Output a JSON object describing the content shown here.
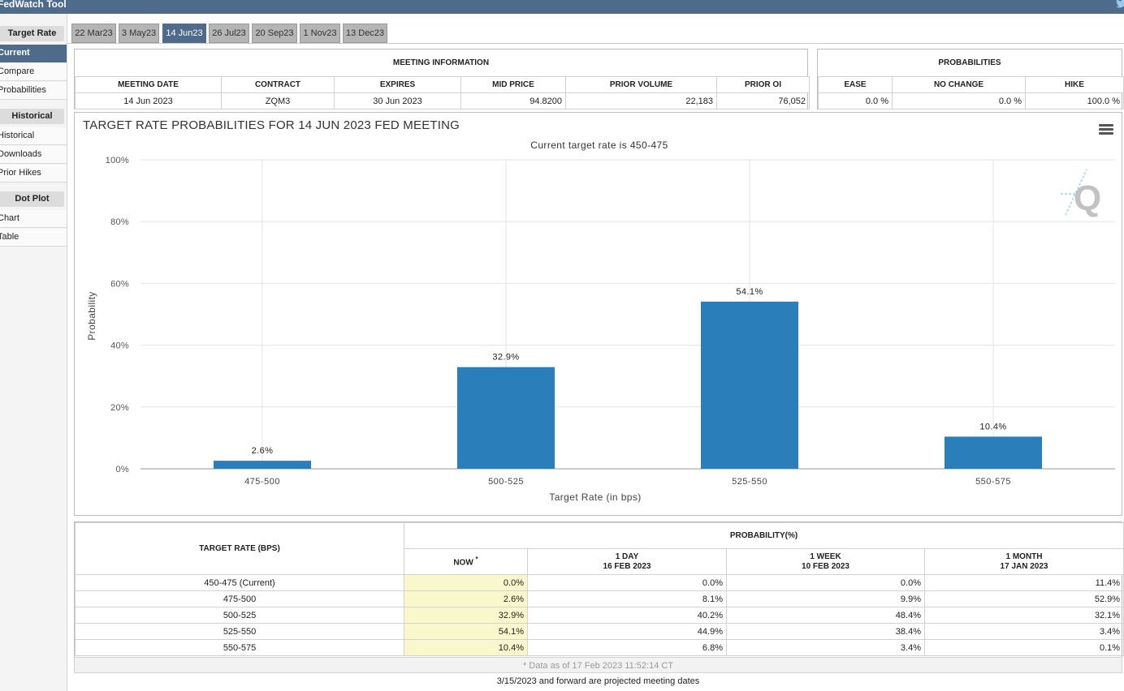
{
  "app": {
    "title": "FedWatch Tool"
  },
  "colors": {
    "accent": "#4e6b8c",
    "bar": "#2a7fba",
    "highlight": "#f8f8cc"
  },
  "sidebar": {
    "sections": [
      {
        "header": "Target Rate",
        "items": [
          "Current",
          "Compare",
          "Probabilities"
        ]
      },
      {
        "header": "Historical",
        "items": [
          "Historical",
          "Downloads",
          "Prior Hikes"
        ]
      },
      {
        "header": "Dot Plot",
        "items": [
          "Chart",
          "Table"
        ]
      }
    ]
  },
  "tabs": [
    "22 Mar23",
    "3 May23",
    "14 Jun23",
    "26 Jul23",
    "20 Sep23",
    "1 Nov23",
    "13 Dec23"
  ],
  "meeting_info": {
    "title": "MEETING INFORMATION",
    "headers": [
      "MEETING DATE",
      "CONTRACT",
      "EXPIRES",
      "MID PRICE",
      "PRIOR VOLUME",
      "PRIOR OI"
    ],
    "values": [
      "14 Jun 2023",
      "ZQM3",
      "30 Jun 2023",
      "94.8200",
      "22,183",
      "76,052"
    ]
  },
  "probabilities": {
    "title": "PROBABILITIES",
    "headers": [
      "EASE",
      "NO CHANGE",
      "HIKE"
    ],
    "values": [
      "0.0 %",
      "0.0 %",
      "100.0 %"
    ]
  },
  "chart_data": {
    "type": "bar",
    "title": "TARGET RATE PROBABILITIES FOR 14 JUN 2023 FED MEETING",
    "subtitle": "Current target rate is 450-475",
    "categories": [
      "475-500",
      "500-525",
      "525-550",
      "550-575"
    ],
    "values": [
      2.6,
      32.9,
      54.1,
      10.4
    ],
    "data_labels": [
      "2.6%",
      "32.9%",
      "54.1%",
      "10.4%"
    ],
    "xlabel": "Target Rate (in bps)",
    "ylabel": "Probability",
    "ylim": [
      0,
      100
    ],
    "yticks": [
      0,
      20,
      40,
      60,
      80,
      100
    ],
    "ytick_labels": [
      "0%",
      "20%",
      "40%",
      "60%",
      "80%",
      "100%"
    ],
    "grid": true,
    "watermark": "Q"
  },
  "prob_table": {
    "left_header": "TARGET RATE (BPS)",
    "group_header": "PROBABILITY(%)",
    "columns": [
      {
        "line1": "NOW",
        "line2": "",
        "marker": "*"
      },
      {
        "line1": "1 DAY",
        "line2": "16 FEB 2023",
        "marker": ""
      },
      {
        "line1": "1 WEEK",
        "line2": "10 FEB 2023",
        "marker": ""
      },
      {
        "line1": "1 MONTH",
        "line2": "17 JAN 2023",
        "marker": ""
      }
    ],
    "rows": [
      {
        "rate": "450-475 (Current)",
        "values": [
          "0.0%",
          "0.0%",
          "0.0%",
          "11.4%"
        ]
      },
      {
        "rate": "475-500",
        "values": [
          "2.6%",
          "8.1%",
          "9.9%",
          "52.9%"
        ]
      },
      {
        "rate": "500-525",
        "values": [
          "32.9%",
          "40.2%",
          "48.4%",
          "32.1%"
        ]
      },
      {
        "rate": "525-550",
        "values": [
          "54.1%",
          "44.9%",
          "38.4%",
          "3.4%"
        ]
      },
      {
        "rate": "550-575",
        "values": [
          "10.4%",
          "6.8%",
          "3.4%",
          "0.1%"
        ]
      }
    ],
    "footnote": "* Data as of 17 Feb 2023 11:52:14 CT"
  },
  "projection_note": "3/15/2023 and forward are projected meeting dates"
}
